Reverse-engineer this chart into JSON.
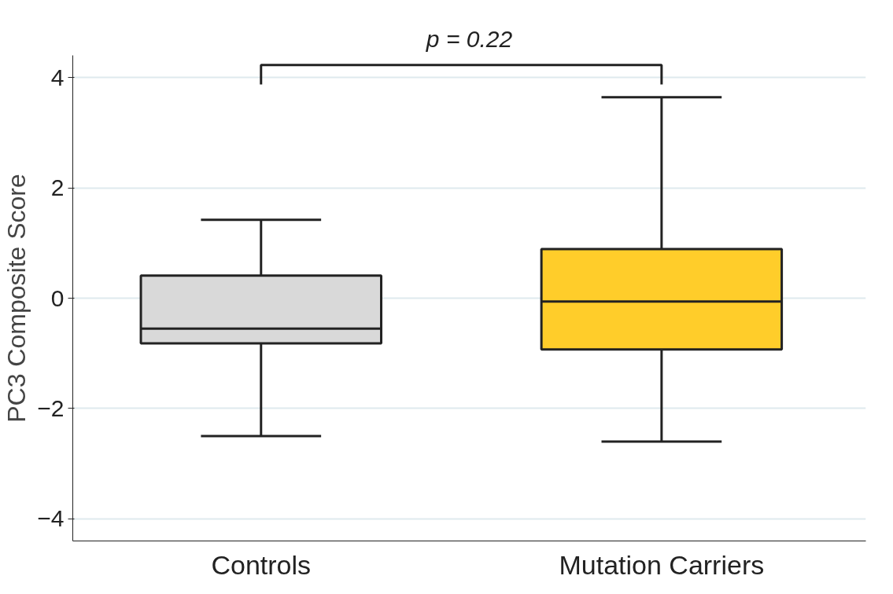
{
  "chart_data": {
    "type": "box",
    "categories": [
      "Controls",
      "Mutation Carriers"
    ],
    "ylabel": "PC3 Composite Score",
    "ylim": [
      -4.4,
      4.4
    ],
    "yticks": [
      -4,
      -2,
      0,
      2,
      4
    ],
    "grid": "y",
    "series": [
      {
        "colors": [
          "#d9d9d9",
          "#ffcd2a"
        ],
        "boxes": [
          {
            "low": -2.5,
            "q1": -0.82,
            "median": -0.55,
            "q3": 0.41,
            "high": 1.42
          },
          {
            "low": -2.6,
            "q1": -0.93,
            "median": -0.06,
            "q3": 0.89,
            "high": 3.64
          }
        ]
      }
    ],
    "annotations": [
      "p = 0.22"
    ]
  }
}
